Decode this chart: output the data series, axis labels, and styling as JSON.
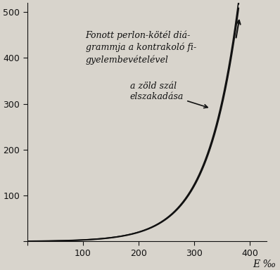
{
  "title_text": "Fonott perlon-kötél diá-\ngrammja a kontrakoló fi-\ngyelembevételével",
  "annotation_text": "a zöld szál\nelszakadása",
  "xlabel": "E ‰",
  "ylabel": "",
  "xlim": [
    0,
    430
  ],
  "ylim": [
    0,
    520
  ],
  "xticks": [
    0,
    100,
    200,
    300,
    400
  ],
  "yticks": [
    0,
    100,
    200,
    300,
    400,
    500
  ],
  "bg_color": "#d8d4cc",
  "line_color": "#111111",
  "title_fontsize": 9,
  "annot_fontsize": 9,
  "xlabel_fontsize": 10
}
